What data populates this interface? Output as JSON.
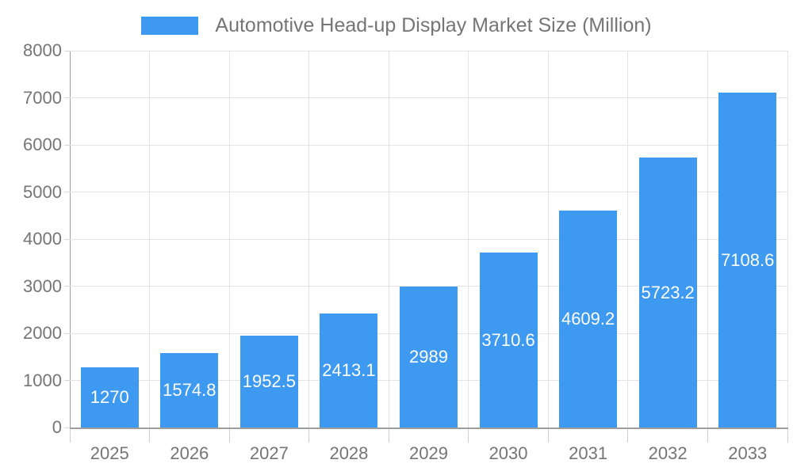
{
  "chart_data": {
    "type": "bar",
    "title": "Automotive Head-up Display Market Size (Million)",
    "legend": "Automotive Head-up Display Market Size (Million)",
    "legend_position": "top",
    "categories": [
      "2025",
      "2026",
      "2027",
      "2028",
      "2029",
      "2030",
      "2031",
      "2032",
      "2033"
    ],
    "series": [
      {
        "name": "Automotive Head-up Display Market Size (Million)",
        "values": [
          1270,
          1574.8,
          1952.5,
          2413.1,
          2989,
          3710.6,
          4609.2,
          5723.2,
          7108.6
        ],
        "value_labels": [
          "1270",
          "1574.8",
          "1952.5",
          "2413.1",
          "2989",
          "3710.6",
          "4609.2",
          "5723.2",
          "7108.6"
        ]
      }
    ],
    "xlabel": "",
    "ylabel": "",
    "ylim": [
      0,
      8000
    ],
    "ytick_step": 1000,
    "ytick_labels": [
      "0",
      "1000",
      "2000",
      "3000",
      "4000",
      "5000",
      "6000",
      "7000",
      "8000"
    ],
    "grid": true,
    "colors": {
      "bar": "#3D9AF0",
      "value_label": "#ffffff",
      "axis_line": "#9e9e9e",
      "grid_line": "#e3e3e3",
      "tick_text": "#757575"
    }
  }
}
